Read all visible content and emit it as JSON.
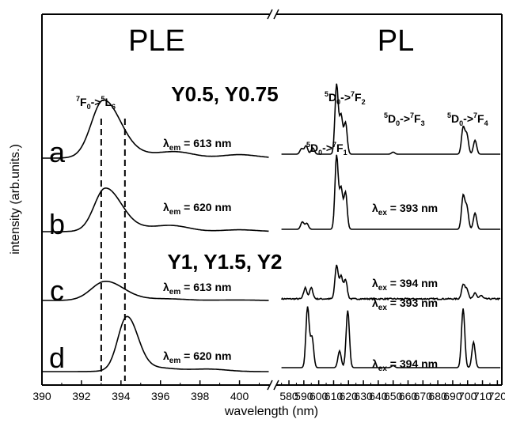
{
  "chart_data": {
    "type": "line",
    "xlabel": "wavelength (nm)",
    "ylabel": "intensity (arb.units.)",
    "panels": [
      {
        "title": "PLE",
        "xlim": [
          390,
          401.5
        ],
        "xticks": [
          "390",
          "392",
          "394",
          "396",
          "398",
          "400"
        ],
        "xtick_values": [
          390,
          392,
          394,
          396,
          398,
          400
        ],
        "dashed_lines_x": [
          393.0,
          394.2
        ],
        "transition_label": {
          "a": "F",
          "asub": "0",
          "asup": "7",
          "arrow": "->",
          "b": "L",
          "bsub": "6",
          "bsup": "5"
        }
      },
      {
        "title": "PL",
        "xlim": [
          572,
          723
        ],
        "xticks": [
          "580",
          "590",
          "600",
          "610",
          "620",
          "630",
          "640",
          "650",
          "660",
          "670",
          "680",
          "690",
          "700",
          "710",
          "720"
        ],
        "xtick_values": [
          580,
          590,
          600,
          610,
          620,
          630,
          640,
          650,
          660,
          670,
          680,
          690,
          700,
          710,
          720
        ],
        "transition_labels": [
          {
            "a": "D",
            "asub": "0",
            "asup": "5",
            "arrow": "->",
            "b": "F",
            "bsub": "1",
            "bsup": "7"
          },
          {
            "a": "D",
            "asub": "0",
            "asup": "5",
            "arrow": "->",
            "b": "F",
            "bsub": "2",
            "bsup": "7"
          },
          {
            "a": "D",
            "asub": "0",
            "asup": "5",
            "arrow": "->",
            "b": "F",
            "bsub": "3",
            "bsup": "7"
          },
          {
            "a": "D",
            "asub": "0",
            "asup": "5",
            "arrow": "->",
            "b": "F",
            "bsub": "4",
            "bsup": "7"
          }
        ]
      }
    ],
    "group_labels": [
      "Y0.5, Y0.75",
      "Y1, Y1.5, Y2"
    ],
    "series": [
      {
        "name": "a",
        "ple": {
          "label": "λ",
          "sub": "em",
          "value": "= 613 nm",
          "peak_x": 393.1,
          "height": 1.0,
          "left_width": 0.6,
          "right_width": 0.85,
          "bumps": [
            [
              396.8,
              0.12
            ],
            [
              400.0,
              0.07
            ]
          ]
        },
        "pl": {
          "label": "λ",
          "sub": "ex",
          "value": "= 393 nm",
          "noise": 0.0,
          "peaks": [
            [
              588.5,
              0.08
            ],
            [
              591.5,
              0.12
            ],
            [
              596,
              0.09
            ],
            [
              612,
              1.0
            ],
            [
              615,
              0.55
            ],
            [
              618,
              0.45
            ],
            [
              650,
              0.03
            ],
            [
              697,
              0.38
            ],
            [
              699.5,
              0.28
            ],
            [
              705,
              0.2
            ]
          ]
        }
      },
      {
        "name": "b",
        "ple": {
          "label": "λ",
          "sub": "em",
          "value": "= 620 nm",
          "peak_x": 393.2,
          "height": 0.75,
          "left_width": 0.55,
          "right_width": 0.8,
          "bumps": [
            [
              396.6,
              0.15
            ],
            [
              400.0,
              0.05
            ]
          ]
        },
        "pl": {
          "label": "λ",
          "sub": "ex",
          "value": "= 394 nm",
          "noise": 0.0,
          "peaks": [
            [
              589,
              0.1
            ],
            [
              592,
              0.08
            ],
            [
              612,
              1.0
            ],
            [
              615,
              0.55
            ],
            [
              618,
              0.5
            ],
            [
              697,
              0.45
            ],
            [
              699.5,
              0.3
            ],
            [
              705,
              0.22
            ]
          ]
        }
      },
      {
        "name": "c",
        "ple": {
          "label": "λ",
          "sub": "em",
          "value": "= 613 nm",
          "peak_x": 393.2,
          "height": 0.33,
          "left_width": 0.7,
          "right_width": 0.9,
          "bumps": [
            [
              396.5,
              0.08
            ],
            [
              399.8,
              0.03
            ]
          ]
        },
        "pl": {
          "label": "λ",
          "sub": "ex",
          "value": "= 393 nm",
          "noise": 0.012,
          "peaks": [
            [
              591,
              0.2
            ],
            [
              595,
              0.2
            ],
            [
              612,
              0.6
            ],
            [
              615,
              0.4
            ],
            [
              618,
              0.35
            ],
            [
              697,
              0.25
            ],
            [
              699.5,
              0.18
            ],
            [
              705,
              0.1
            ],
            [
              709,
              0.06
            ]
          ]
        }
      },
      {
        "name": "d",
        "ple": {
          "label": "λ",
          "sub": "em",
          "value": "= 620 nm",
          "peak_x": 394.3,
          "height": 0.95,
          "left_width": 0.45,
          "right_width": 0.55,
          "bumps": [
            [
              398.5,
              0.05
            ]
          ]
        },
        "pl": {
          "label": "λ",
          "sub": "ex",
          "value": "= 394 nm",
          "noise": 0.0,
          "peaks": [
            [
              592.5,
              0.9
            ],
            [
              595.5,
              0.45
            ],
            [
              614,
              0.25
            ],
            [
              619.5,
              0.85
            ],
            [
              650,
              0.03
            ],
            [
              697,
              0.88
            ],
            [
              704,
              0.38
            ]
          ]
        }
      }
    ]
  }
}
